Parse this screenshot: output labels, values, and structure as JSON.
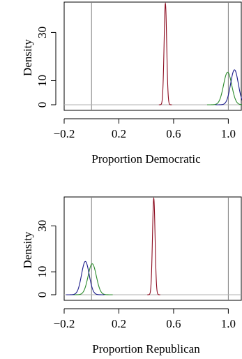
{
  "chart_data": [
    {
      "type": "line",
      "xlabel": "Proportion Democratic",
      "ylabel": "Density",
      "xlim": [
        -0.2,
        1.1
      ],
      "ylim": [
        0,
        42
      ],
      "xticks": [
        -0.2,
        0.2,
        0.6,
        1.0
      ],
      "xtick_labels": [
        "−0.2",
        "0.2",
        "0.6",
        "1.0"
      ],
      "yticks": [
        0,
        10,
        30
      ],
      "ytick_labels": [
        "0",
        "10",
        "30"
      ],
      "vlines": [
        0.0,
        1.0
      ],
      "hline": 0,
      "series": [
        {
          "color": "#8b0a1e",
          "mean": 0.54,
          "sd": 0.0095,
          "peak": 42
        },
        {
          "color": "#2a8a2a",
          "mean": 0.995,
          "sd": 0.03,
          "peak": 13.5
        },
        {
          "color": "#1a1a8a",
          "mean": 1.045,
          "sd": 0.028,
          "peak": 14.5
        }
      ]
    },
    {
      "type": "line",
      "xlabel": "Proportion Republican",
      "ylabel": "Density",
      "xlim": [
        -0.2,
        1.1
      ],
      "ylim": [
        0,
        42
      ],
      "xticks": [
        -0.2,
        0.2,
        0.6,
        1.0
      ],
      "xtick_labels": [
        "−0.2",
        "0.2",
        "0.6",
        "1.0"
      ],
      "yticks": [
        0,
        10,
        30
      ],
      "ytick_labels": [
        "0",
        "10",
        "30"
      ],
      "vlines": [
        0.0,
        1.0
      ],
      "hline": 0,
      "series": [
        {
          "color": "#8b0a1e",
          "mean": 0.455,
          "sd": 0.0095,
          "peak": 42
        },
        {
          "color": "#2a8a2a",
          "mean": 0.005,
          "sd": 0.03,
          "peak": 13.5
        },
        {
          "color": "#1a1a8a",
          "mean": -0.045,
          "sd": 0.028,
          "peak": 14.5
        }
      ]
    }
  ]
}
